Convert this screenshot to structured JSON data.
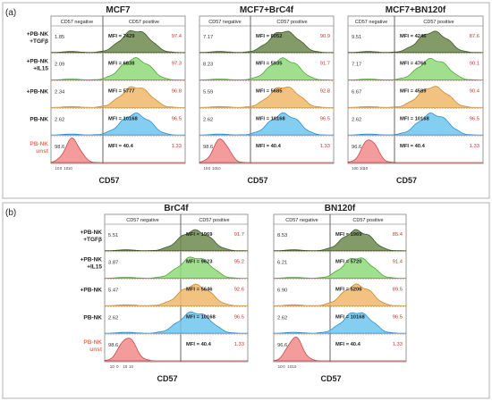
{
  "figure": {
    "panels": [
      "(a)",
      "(b)"
    ],
    "header_negative": "CD57 negative",
    "header_positive": "CD57 positive",
    "xlabel": "CD57",
    "ticks_a": [
      "10",
      "0",
      "10",
      "10"
    ],
    "ticks_b": [
      "10",
      "0",
      "10",
      "10"
    ],
    "colors": {
      "tgfb": "#6d8a4e",
      "il15": "#8fd97a",
      "pbnk_plus": "#f0b86a",
      "pbnk": "#6fc6ee",
      "unst": "#f28a8a",
      "unst_label": "#e8735a",
      "frame": "#9a9a9a",
      "divider": "#d9a0a0"
    }
  },
  "chart_data": [
    {
      "type": "histogram",
      "panel": "(a)",
      "title": "MCF7",
      "xlabel": "CD57",
      "rows": [
        {
          "label": "+PB-NK\n+TGFβ",
          "neg": "1.85",
          "mfi": "MFI = 7429",
          "pos": "97.4",
          "peak": 0.66
        },
        {
          "label": "+PB-NK\n+IL15",
          "neg": "2.09",
          "mfi": "MFI = 6838",
          "pos": "97.3",
          "peak": 0.6
        },
        {
          "label": "+PB-NK",
          "neg": "2.34",
          "mfi": "MFI = 5777",
          "pos": "96.8",
          "peak": 0.55
        },
        {
          "label": "PB-NK",
          "neg": "2.62",
          "mfi": "MFI = 10168",
          "pos": "96.5",
          "peak": 0.58
        },
        {
          "label": "PB-NK\nunst",
          "neg": "98.6",
          "mfi": "MFI = 40.4",
          "pos": "1.33",
          "peak": 0.1
        }
      ]
    },
    {
      "type": "histogram",
      "panel": "(a)",
      "title": "MCF7+BrC4f",
      "xlabel": "CD57",
      "rows": [
        {
          "label": "+PB-NK\n+TGFβ",
          "neg": "7.17",
          "mfi": "MFI = 6052",
          "pos": "90.9",
          "peak": 0.6
        },
        {
          "label": "+PB-NK\n+IL15",
          "neg": "8.23",
          "mfi": "MFI = 5935",
          "pos": "91.7",
          "peak": 0.58
        },
        {
          "label": "+PB-NK",
          "neg": "5.59",
          "mfi": "MFI = 5685",
          "pos": "92.8",
          "peak": 0.56
        },
        {
          "label": "PB-NK",
          "neg": "2.62",
          "mfi": "MFI = 10168",
          "pos": "96.5",
          "peak": 0.58
        },
        {
          "label": "PB-NK\nunst",
          "neg": "98.6",
          "mfi": "MFI = 40.4",
          "pos": "1.33",
          "peak": 0.1
        }
      ]
    },
    {
      "type": "histogram",
      "panel": "(a)",
      "title": "MCF7+BN120f",
      "xlabel": "CD57",
      "rows": [
        {
          "label": "+PB-NK\n+TGFβ",
          "neg": "9.51",
          "mfi": "MFI = 4246",
          "pos": "87.6",
          "peak": 0.55
        },
        {
          "label": "+PB-NK\n+IL15",
          "neg": "7.17",
          "mfi": "MFI = 4766",
          "pos": "90.1",
          "peak": 0.56
        },
        {
          "label": "+PB-NK",
          "neg": "6.67",
          "mfi": "MFI = 4589",
          "pos": "90.4",
          "peak": 0.55
        },
        {
          "label": "PB-NK",
          "neg": "2.62",
          "mfi": "MFI = 10168",
          "pos": "96.5",
          "peak": 0.58
        },
        {
          "label": "PB-NK\nunst",
          "neg": "96.6",
          "mfi": "MFI = 40.4",
          "pos": "1.33",
          "peak": 0.1
        }
      ]
    },
    {
      "type": "histogram",
      "panel": "(b)",
      "title": "BrC4f",
      "xlabel": "CD57",
      "rows": [
        {
          "label": "+PB-NK\n+TGFβ",
          "neg": "5.51",
          "mfi": "MFI = 1969",
          "pos": "91.7",
          "peak": 0.5
        },
        {
          "label": "+PB-NK\n+IL15",
          "neg": "3.87",
          "mfi": "MFI = 9623",
          "pos": "95.2",
          "peak": 0.58
        },
        {
          "label": "+PB-NK",
          "neg": "5.47",
          "mfi": "MFI = 5646",
          "pos": "92.6",
          "peak": 0.55
        },
        {
          "label": "PB-NK",
          "neg": "2.62",
          "mfi": "MFI = 10168",
          "pos": "96.5",
          "peak": 0.58
        },
        {
          "label": "PB-NK\nunst",
          "neg": "98.6",
          "mfi": "MFI = 40.4",
          "pos": "1.33",
          "peak": 0.1
        }
      ]
    },
    {
      "type": "histogram",
      "panel": "(b)",
      "title": "BN120f",
      "xlabel": "CD57",
      "rows": [
        {
          "label": "+PB-NK\n+TGFβ",
          "neg": "8.53",
          "mfi": "MFI = 1969",
          "pos": "85.4",
          "peak": 0.5
        },
        {
          "label": "+PB-NK\n+IL15",
          "neg": "6.21",
          "mfi": "MFI = 5720",
          "pos": "91.4",
          "peak": 0.55
        },
        {
          "label": "+PB-NK",
          "neg": "6.90",
          "mfi": "MFI = 5206",
          "pos": "89.5",
          "peak": 0.55
        },
        {
          "label": "PB-NK",
          "neg": "2.62",
          "mfi": "MFI = 10168",
          "pos": "96.5",
          "peak": 0.58
        },
        {
          "label": "PB-NK\nunst",
          "neg": "96.6",
          "mfi": "MFI = 40.4",
          "pos": "1.33",
          "peak": 0.1
        }
      ]
    }
  ]
}
